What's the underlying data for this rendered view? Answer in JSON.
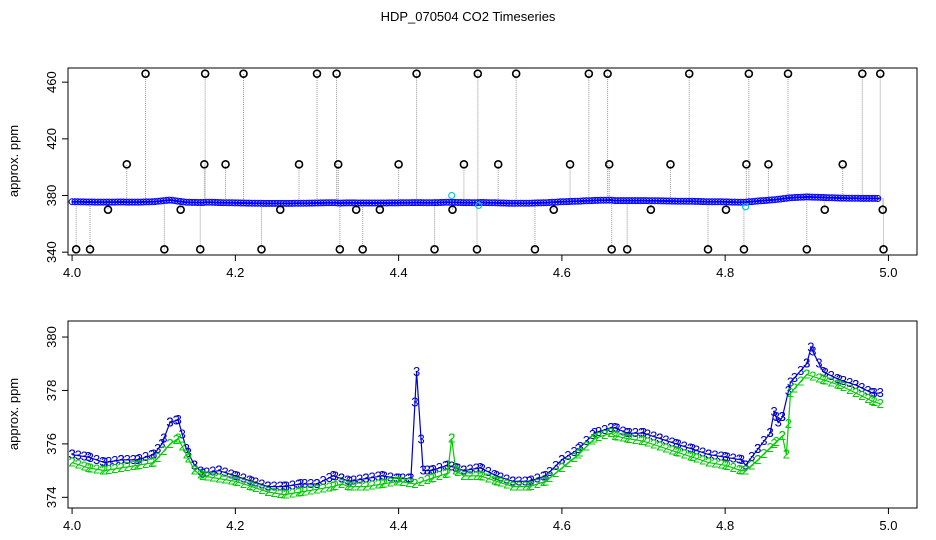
{
  "title": "HDP_070504  CO2 Timeseries",
  "chart_data": [
    {
      "type": "scatter",
      "ylabel": "approx. ppm",
      "xlabel": "",
      "xlim": [
        3.995,
        5.035
      ],
      "ylim": [
        338,
        470
      ],
      "xticks": [
        "4.0",
        "4.2",
        "4.4",
        "4.6",
        "4.8",
        "5.0"
      ],
      "yticks": [
        "340",
        "380",
        "420",
        "460"
      ],
      "colors": {
        "series": "#0000ff",
        "alt": "#00cd00",
        "cyan": "#00cdcd",
        "outlier": "#000000",
        "drop": "#999999"
      },
      "series": [
        {
          "role": "main",
          "x": [
            4.0,
            4.02,
            4.04,
            4.06,
            4.08,
            4.1,
            4.12,
            4.14,
            4.16,
            4.165,
            4.18,
            4.2,
            4.22,
            4.24,
            4.26,
            4.28,
            4.3,
            4.32,
            4.33,
            4.335,
            4.36,
            4.38,
            4.4,
            4.42,
            4.44,
            4.46,
            4.48,
            4.495,
            4.5,
            4.52,
            4.54,
            4.56,
            4.58,
            4.6,
            4.62,
            4.64,
            4.66,
            4.665,
            4.68,
            4.7,
            4.72,
            4.74,
            4.76,
            4.78,
            4.8,
            4.82,
            4.825,
            4.84,
            4.86,
            4.88,
            4.9,
            4.92,
            4.94,
            4.96,
            4.99
          ],
          "y": [
            375.6,
            375.4,
            375.3,
            375.4,
            375.3,
            375.6,
            376.8,
            375.2,
            375.0,
            375.3,
            375.0,
            374.8,
            374.6,
            374.4,
            374.4,
            374.5,
            374.7,
            374.9,
            374.6,
            374.8,
            374.7,
            374.7,
            374.8,
            375.0,
            374.9,
            375.2,
            375.0,
            374.9,
            375.1,
            374.8,
            374.5,
            374.6,
            374.9,
            375.6,
            376.0,
            376.5,
            376.8,
            376.4,
            376.4,
            376.4,
            376.2,
            376.0,
            375.9,
            375.6,
            375.5,
            375.2,
            375.3,
            376.1,
            377.0,
            378.4,
            379.0,
            378.6,
            378.2,
            378.0,
            377.9
          ]
        },
        {
          "role": "outliers",
          "x": [
            4.005,
            4.022,
            4.044,
            4.067,
            4.09,
            4.113,
            4.133,
            4.157,
            4.162,
            4.163,
            4.188,
            4.21,
            4.232,
            4.255,
            4.278,
            4.3,
            4.324,
            4.326,
            4.328,
            4.348,
            4.356,
            4.377,
            4.4,
            4.422,
            4.444,
            4.466,
            4.48,
            4.496,
            4.497,
            4.522,
            4.544,
            4.567,
            4.59,
            4.61,
            4.633,
            4.656,
            4.658,
            4.661,
            4.68,
            4.709,
            4.733,
            4.756,
            4.779,
            4.801,
            4.823,
            4.826,
            4.829,
            4.853,
            4.877,
            4.9,
            4.922,
            4.944,
            4.968,
            4.99,
            4.993,
            4.994
          ],
          "y": [
            342,
            342,
            370,
            402,
            466,
            342,
            370,
            342,
            402,
            466,
            402,
            466,
            342,
            370,
            402,
            466,
            466,
            402,
            342,
            370,
            342,
            370,
            402,
            466,
            342,
            370,
            402,
            342,
            466,
            402,
            466,
            342,
            370,
            402,
            466,
            466,
            402,
            342,
            342,
            370,
            402,
            466,
            342,
            370,
            342,
            402,
            466,
            402,
            466,
            342,
            370,
            402,
            466,
            466,
            370,
            342
          ]
        },
        {
          "role": "alt",
          "x": [
            4.465,
            4.498,
            4.825
          ],
          "y": [
            380,
            373,
            372
          ]
        }
      ]
    },
    {
      "type": "line",
      "ylabel": "approx. ppm",
      "xlabel": "",
      "xlim": [
        3.995,
        5.035
      ],
      "ylim": [
        373.6,
        380.6
      ],
      "xticks": [
        "4.0",
        "4.2",
        "4.4",
        "4.6",
        "4.8",
        "5.0"
      ],
      "yticks": [
        "374",
        "376",
        "378",
        "380"
      ],
      "series": [
        {
          "marker": "3",
          "color": "#0000cd",
          "x": [
            4.0,
            4.02,
            4.04,
            4.06,
            4.08,
            4.1,
            4.11,
            4.12,
            4.13,
            4.14,
            4.15,
            4.16,
            4.18,
            4.2,
            4.22,
            4.24,
            4.26,
            4.28,
            4.3,
            4.32,
            4.33,
            4.34,
            4.36,
            4.38,
            4.4,
            4.415,
            4.422,
            4.43,
            4.44,
            4.46,
            4.47,
            4.48,
            4.5,
            4.52,
            4.54,
            4.56,
            4.58,
            4.6,
            4.62,
            4.64,
            4.66,
            4.665,
            4.68,
            4.7,
            4.72,
            4.74,
            4.76,
            4.78,
            4.8,
            4.82,
            4.825,
            4.84,
            4.855,
            4.86,
            4.865,
            4.87,
            4.88,
            4.9,
            4.905,
            4.92,
            4.94,
            4.96,
            4.98,
            4.99
          ],
          "y": [
            375.6,
            375.5,
            375.3,
            375.4,
            375.4,
            375.6,
            376.0,
            376.8,
            376.9,
            375.8,
            375.2,
            374.9,
            375.0,
            374.8,
            374.6,
            374.4,
            374.4,
            374.5,
            374.5,
            374.8,
            374.7,
            374.6,
            374.7,
            374.8,
            374.7,
            374.7,
            378.7,
            375.0,
            375.0,
            375.2,
            375.1,
            375.0,
            375.1,
            374.8,
            374.6,
            374.6,
            374.8,
            375.4,
            375.8,
            376.4,
            376.6,
            376.6,
            376.4,
            376.4,
            376.2,
            376.0,
            375.8,
            375.6,
            375.5,
            375.4,
            375.2,
            375.8,
            376.4,
            377.2,
            376.8,
            377.0,
            378.3,
            379.0,
            379.6,
            378.7,
            378.4,
            378.2,
            377.9,
            377.9
          ]
        },
        {
          "marker": "2",
          "color": "#00cd00",
          "x": [
            4.0,
            4.02,
            4.04,
            4.06,
            4.08,
            4.1,
            4.12,
            4.13,
            4.14,
            4.15,
            4.16,
            4.18,
            4.2,
            4.22,
            4.24,
            4.26,
            4.28,
            4.3,
            4.32,
            4.33,
            4.34,
            4.36,
            4.38,
            4.4,
            4.42,
            4.44,
            4.46,
            4.465,
            4.47,
            4.48,
            4.5,
            4.52,
            4.54,
            4.56,
            4.58,
            4.6,
            4.62,
            4.64,
            4.66,
            4.665,
            4.68,
            4.7,
            4.72,
            4.74,
            4.76,
            4.78,
            4.8,
            4.82,
            4.825,
            4.84,
            4.86,
            4.87,
            4.875,
            4.88,
            4.9,
            4.92,
            4.94,
            4.96,
            4.98,
            4.99
          ],
          "y": [
            375.3,
            375.1,
            375.0,
            375.1,
            375.2,
            375.3,
            376.0,
            376.2,
            375.6,
            375.0,
            374.8,
            374.7,
            374.6,
            374.4,
            374.2,
            374.1,
            374.2,
            374.3,
            374.4,
            374.5,
            374.4,
            374.4,
            374.5,
            374.6,
            374.5,
            374.7,
            374.9,
            376.2,
            375.0,
            374.8,
            374.8,
            374.6,
            374.4,
            374.4,
            374.6,
            375.1,
            375.6,
            376.2,
            376.4,
            376.3,
            376.2,
            376.1,
            375.9,
            375.7,
            375.5,
            375.3,
            375.2,
            375.0,
            375.0,
            375.4,
            376.0,
            376.3,
            375.6,
            377.9,
            378.6,
            378.4,
            378.2,
            377.9,
            377.6,
            377.5
          ]
        }
      ]
    }
  ]
}
